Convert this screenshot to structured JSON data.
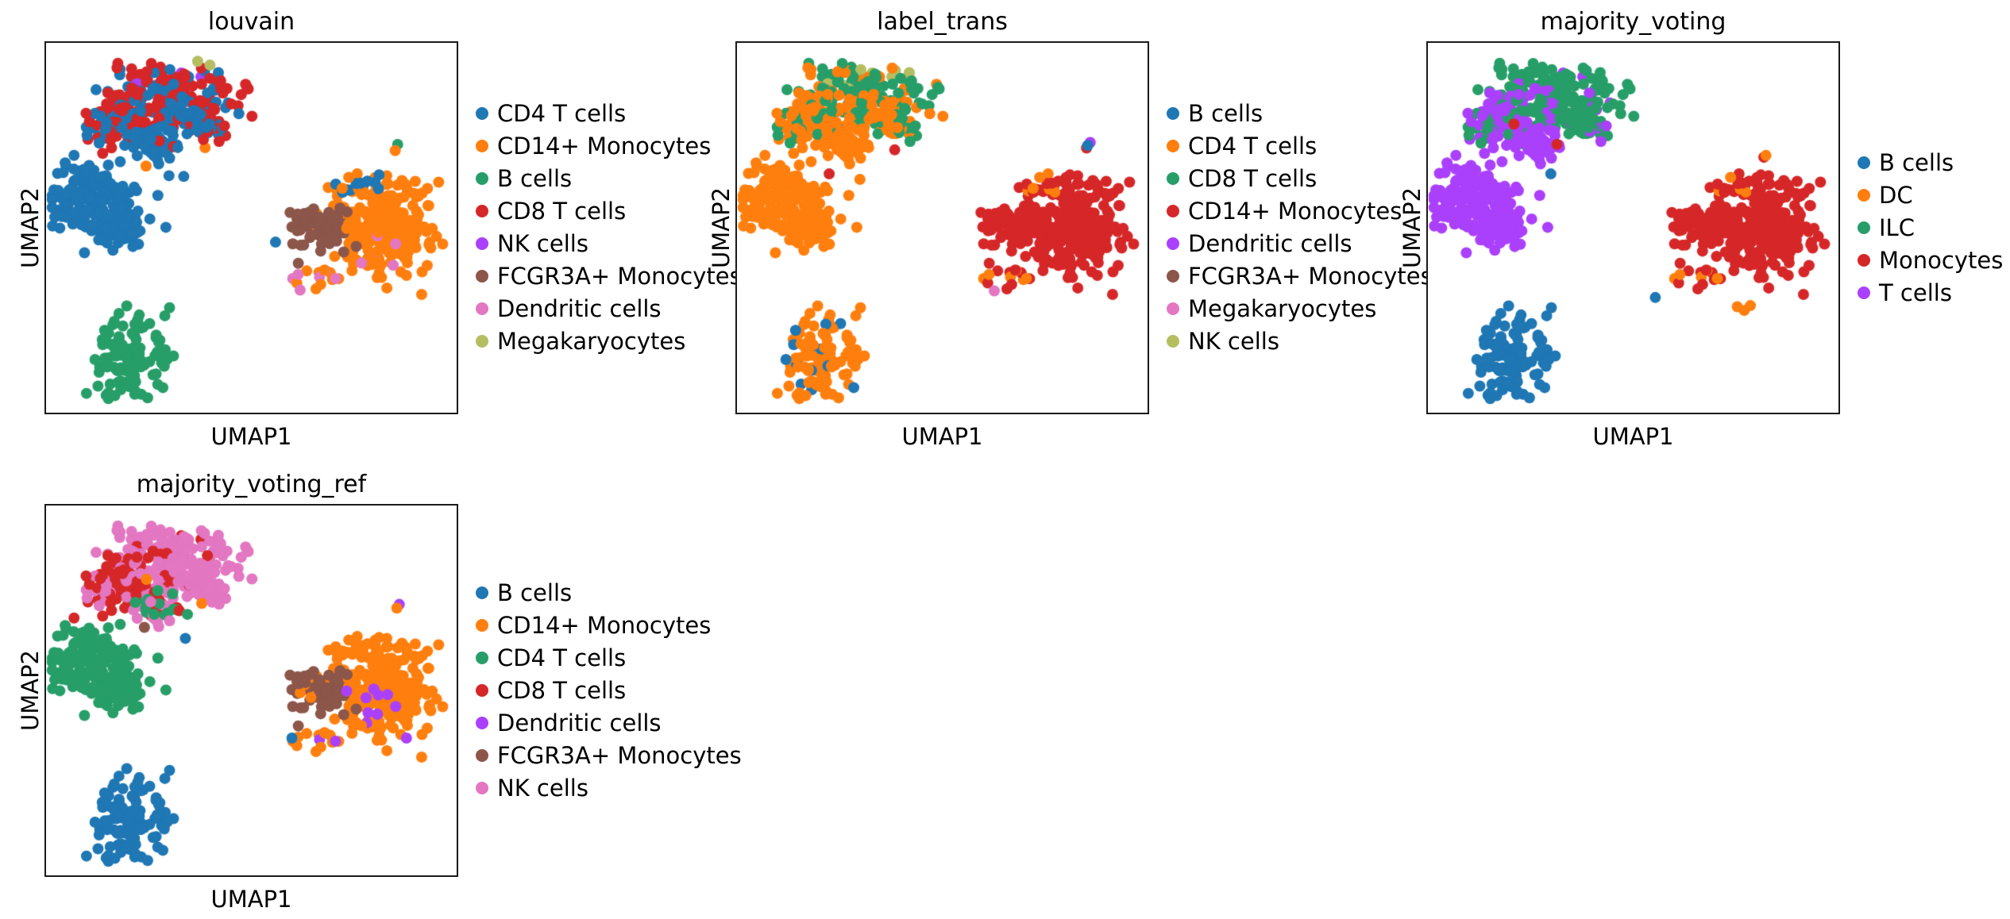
{
  "figure_background": "#ffffff",
  "palette": {
    "blue": "#1f77b4",
    "orange": "#ff7f0e",
    "green": "#279e68",
    "red": "#d62728",
    "purple": "#aa40fc",
    "brown": "#8c564b",
    "pink": "#e377c2",
    "olive": "#b5bd61"
  },
  "chart_data": {
    "type": "scatter",
    "description": "Four UMAP embedding panels of the same single-cell dataset colored by different annotation columns",
    "shared_xlabel": "UMAP1",
    "shared_ylabel": "UMAP2",
    "blob_geometry": [
      {
        "id": "cap-top",
        "cx": 0.33,
        "cy": 0.115,
        "rx": 0.12,
        "ry": 0.048,
        "n": 90
      },
      {
        "id": "cap-lower",
        "cx": 0.3,
        "cy": 0.185,
        "rx": 0.115,
        "ry": 0.048,
        "n": 110
      },
      {
        "id": "cap-right-lump",
        "cx": 0.385,
        "cy": 0.215,
        "rx": 0.055,
        "ry": 0.042,
        "n": 60
      },
      {
        "id": "cap-left-patch",
        "cx": 0.175,
        "cy": 0.215,
        "rx": 0.062,
        "ry": 0.06,
        "n": 90
      },
      {
        "id": "neck",
        "cx": 0.27,
        "cy": 0.275,
        "rx": 0.045,
        "ry": 0.04,
        "n": 45
      },
      {
        "id": "left-lobe",
        "cx": 0.105,
        "cy": 0.42,
        "rx": 0.075,
        "ry": 0.065,
        "n": 150
      },
      {
        "id": "left-tail",
        "cx": 0.175,
        "cy": 0.5,
        "rx": 0.055,
        "ry": 0.045,
        "n": 60
      },
      {
        "id": "b-cell-cluster",
        "cx": 0.21,
        "cy": 0.85,
        "rx": 0.065,
        "ry": 0.08,
        "n": 110
      },
      {
        "id": "right-main",
        "cx": 0.82,
        "cy": 0.5,
        "rx": 0.1,
        "ry": 0.095,
        "n": 260
      },
      {
        "id": "right-sub",
        "cx": 0.67,
        "cy": 0.5,
        "rx": 0.06,
        "ry": 0.045,
        "n": 75
      },
      {
        "id": "right-top-scatter",
        "cx": 0.75,
        "cy": 0.38,
        "rx": 0.05,
        "ry": 0.035,
        "n": 18
      },
      {
        "id": "right-low-scatter",
        "cx": 0.66,
        "cy": 0.625,
        "rx": 0.045,
        "ry": 0.028,
        "n": 14
      },
      {
        "id": "dc-sprinkle",
        "cx": 0.8,
        "cy": 0.55,
        "rx": 0.045,
        "ry": 0.075,
        "n": 14
      }
    ],
    "panels": [
      {
        "title": "louvain",
        "xlabel": "UMAP1",
        "ylabel": "UMAP2",
        "grid": [
          0,
          0
        ],
        "legend": [
          {
            "label": "CD4 T cells",
            "color": "blue"
          },
          {
            "label": "CD14+ Monocytes",
            "color": "orange"
          },
          {
            "label": "B cells",
            "color": "green"
          },
          {
            "label": "CD8 T cells",
            "color": "red"
          },
          {
            "label": "NK cells",
            "color": "purple"
          },
          {
            "label": "FCGR3A+ Monocytes",
            "color": "brown"
          },
          {
            "label": "Dendritic cells",
            "color": "pink"
          },
          {
            "label": "Megakaryocytes",
            "color": "olive"
          }
        ],
        "blob_mixes": [
          [
            [
              "red",
              0.83
            ],
            [
              "blue",
              0.15
            ],
            [
              "purple",
              0.02
            ]
          ],
          [
            [
              "red",
              0.55
            ],
            [
              "blue",
              0.45
            ]
          ],
          [
            [
              "blue",
              0.6
            ],
            [
              "red",
              0.4
            ]
          ],
          [
            [
              "red",
              0.55
            ],
            [
              "blue",
              0.45
            ]
          ],
          [
            [
              "blue",
              0.85
            ],
            [
              "red",
              0.15
            ]
          ],
          [
            [
              "blue",
              1
            ]
          ],
          [
            [
              "blue",
              1
            ]
          ],
          [
            [
              "green",
              1
            ]
          ],
          [
            [
              "orange",
              1
            ]
          ],
          [
            [
              "brown",
              0.9
            ],
            [
              "orange",
              0.1
            ]
          ],
          [
            [
              "blue",
              0.5
            ],
            [
              "orange",
              0.5
            ]
          ],
          [
            [
              "orange",
              0.7
            ],
            [
              "pink",
              0.3
            ]
          ],
          [
            [
              "orange",
              0.7
            ],
            [
              "pink",
              0.3
            ]
          ]
        ],
        "outlier_points": [
          [
            0.244,
            0.334,
            "orange"
          ],
          [
            0.388,
            0.284,
            "orange"
          ],
          [
            0.384,
            0.262,
            "red"
          ],
          [
            0.858,
            0.275,
            "green"
          ],
          [
            0.852,
            0.292,
            "orange"
          ],
          [
            0.3,
            0.36,
            "blue"
          ],
          [
            0.336,
            0.362,
            "blue"
          ],
          [
            0.56,
            0.54,
            "blue"
          ],
          [
            0.37,
            0.05,
            "olive"
          ],
          [
            0.4,
            0.06,
            "olive"
          ],
          [
            0.62,
            0.67,
            "pink"
          ]
        ]
      },
      {
        "title": "label_trans",
        "xlabel": "UMAP1",
        "ylabel": "UMAP2",
        "grid": [
          1,
          0
        ],
        "legend": [
          {
            "label": "B cells",
            "color": "blue"
          },
          {
            "label": "CD4 T cells",
            "color": "orange"
          },
          {
            "label": "CD8 T cells",
            "color": "green"
          },
          {
            "label": "CD14+ Monocytes",
            "color": "red"
          },
          {
            "label": "Dendritic cells",
            "color": "purple"
          },
          {
            "label": "FCGR3A+ Monocytes",
            "color": "brown"
          },
          {
            "label": "Megakaryocytes",
            "color": "pink"
          },
          {
            "label": "NK cells",
            "color": "olive"
          }
        ],
        "blob_mixes": [
          [
            [
              "green",
              0.72
            ],
            [
              "orange",
              0.18
            ],
            [
              "olive",
              0.1
            ]
          ],
          [
            [
              "orange",
              0.58
            ],
            [
              "green",
              0.42
            ]
          ],
          [
            [
              "orange",
              0.5
            ],
            [
              "green",
              0.5
            ]
          ],
          [
            [
              "orange",
              0.8
            ],
            [
              "green",
              0.2
            ]
          ],
          [
            [
              "orange",
              1
            ]
          ],
          [
            [
              "orange",
              1
            ]
          ],
          [
            [
              "orange",
              1
            ]
          ],
          [
            [
              "orange",
              0.88
            ],
            [
              "blue",
              0.12
            ]
          ],
          [
            [
              "red",
              1
            ]
          ],
          [
            [
              "red",
              1
            ]
          ],
          [
            [
              "red",
              0.55
            ],
            [
              "orange",
              0.45
            ]
          ],
          [
            [
              "red",
              0.55
            ],
            [
              "orange",
              0.35
            ],
            [
              "pink",
              0.1
            ]
          ],
          [
            [
              "red",
              1
            ]
          ]
        ],
        "outlier_points": [
          [
            0.225,
            0.355,
            "red"
          ],
          [
            0.385,
            0.29,
            "red"
          ],
          [
            0.3,
            0.37,
            "orange"
          ],
          [
            0.628,
            0.672,
            "pink"
          ],
          [
            0.853,
            0.285,
            "red"
          ],
          [
            0.862,
            0.27,
            "purple"
          ],
          [
            0.856,
            0.278,
            "blue"
          ]
        ]
      },
      {
        "title": "majority_voting",
        "xlabel": "UMAP1",
        "ylabel": "UMAP2",
        "grid": [
          2,
          0
        ],
        "legend": [
          {
            "label": "B cells",
            "color": "blue"
          },
          {
            "label": "DC",
            "color": "orange"
          },
          {
            "label": "ILC",
            "color": "green"
          },
          {
            "label": "Monocytes",
            "color": "red"
          },
          {
            "label": "T cells",
            "color": "purple"
          }
        ],
        "blob_mixes": [
          [
            [
              "green",
              0.97
            ],
            [
              "purple",
              0.03
            ]
          ],
          [
            [
              "green",
              0.8
            ],
            [
              "purple",
              0.2
            ]
          ],
          [
            [
              "green",
              0.78
            ],
            [
              "purple",
              0.22
            ]
          ],
          [
            [
              "purple",
              0.75
            ],
            [
              "green",
              0.25
            ]
          ],
          [
            [
              "purple",
              1
            ]
          ],
          [
            [
              "purple",
              1
            ]
          ],
          [
            [
              "purple",
              1
            ]
          ],
          [
            [
              "blue",
              1
            ]
          ],
          [
            [
              "red",
              1
            ]
          ],
          [
            [
              "red",
              1
            ]
          ],
          [
            [
              "red",
              0.88
            ],
            [
              "orange",
              0.12
            ]
          ],
          [
            [
              "red",
              0.75
            ],
            [
              "orange",
              0.25
            ]
          ],
          [
            [
              "red",
              1
            ]
          ]
        ],
        "outlier_points": [
          [
            0.21,
            0.22,
            "red"
          ],
          [
            0.315,
            0.275,
            "red"
          ],
          [
            0.3,
            0.355,
            "blue"
          ],
          [
            0.555,
            0.69,
            "blue"
          ],
          [
            0.755,
            0.715,
            "orange"
          ],
          [
            0.772,
            0.725,
            "orange"
          ],
          [
            0.787,
            0.712,
            "orange"
          ],
          [
            0.82,
            0.31,
            "red"
          ],
          [
            0.825,
            0.305,
            "orange"
          ]
        ]
      },
      {
        "title": "majority_voting_ref",
        "xlabel": "UMAP1",
        "ylabel": "UMAP2",
        "grid": [
          0,
          1
        ],
        "legend": [
          {
            "label": "B cells",
            "color": "blue"
          },
          {
            "label": "CD14+ Monocytes",
            "color": "orange"
          },
          {
            "label": "CD4 T cells",
            "color": "green"
          },
          {
            "label": "CD8 T cells",
            "color": "red"
          },
          {
            "label": "Dendritic cells",
            "color": "purple"
          },
          {
            "label": "FCGR3A+ Monocytes",
            "color": "brown"
          },
          {
            "label": "NK cells",
            "color": "pink"
          }
        ],
        "blob_mixes": [
          [
            [
              "pink",
              0.97
            ],
            [
              "red",
              0.03
            ]
          ],
          [
            [
              "pink",
              0.88
            ],
            [
              "red",
              0.12
            ]
          ],
          [
            [
              "pink",
              1
            ]
          ],
          [
            [
              "red",
              0.75
            ],
            [
              "pink",
              0.25
            ]
          ],
          [
            [
              "pink",
              0.4
            ],
            [
              "red",
              0.3
            ],
            [
              "green",
              0.3
            ]
          ],
          [
            [
              "green",
              1
            ]
          ],
          [
            [
              "green",
              1
            ]
          ],
          [
            [
              "blue",
              1
            ]
          ],
          [
            [
              "orange",
              1
            ]
          ],
          [
            [
              "brown",
              0.85
            ],
            [
              "orange",
              0.15
            ]
          ],
          [
            [
              "orange",
              1
            ]
          ],
          [
            [
              "orange",
              0.85
            ],
            [
              "purple",
              0.15
            ]
          ],
          [
            [
              "purple",
              0.75
            ],
            [
              "orange",
              0.25
            ]
          ]
        ],
        "outlier_points": [
          [
            0.24,
            0.33,
            "brown"
          ],
          [
            0.34,
            0.36,
            "blue"
          ],
          [
            0.325,
            0.285,
            "red"
          ],
          [
            0.345,
            0.295,
            "green"
          ],
          [
            0.38,
            0.265,
            "orange"
          ],
          [
            0.405,
            0.262,
            "pink"
          ],
          [
            0.245,
            0.2,
            "orange"
          ],
          [
            0.6,
            0.63,
            "blue"
          ],
          [
            0.862,
            0.268,
            "purple"
          ],
          [
            0.856,
            0.278,
            "orange"
          ]
        ]
      }
    ]
  }
}
